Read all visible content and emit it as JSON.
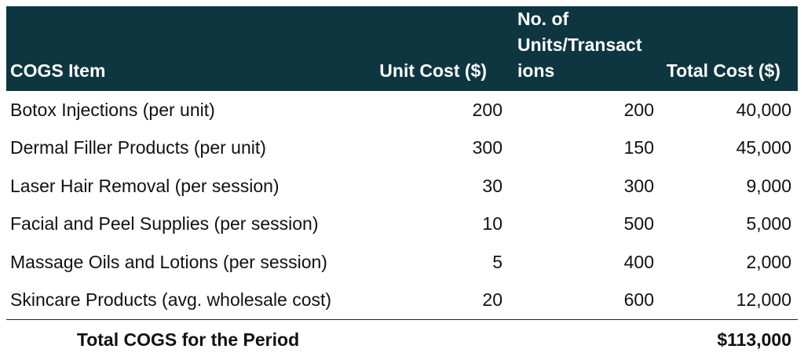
{
  "table": {
    "headers": {
      "item": "COGS Item",
      "unit_cost": "Unit Cost ($)",
      "units_line1": "No. of",
      "units_line2": "Units/Transact",
      "units_line3": "ions",
      "total_cost": "Total Cost ($)"
    },
    "rows": [
      {
        "item": "Botox Injections (per unit)",
        "unit_cost": "200",
        "units": "200",
        "total": "40,000"
      },
      {
        "item": "Dermal Filler Products (per unit)",
        "unit_cost": "300",
        "units": "150",
        "total": "45,000"
      },
      {
        "item": "Laser Hair Removal (per session)",
        "unit_cost": "30",
        "units": "300",
        "total": "9,000"
      },
      {
        "item": "Facial and Peel Supplies (per session)",
        "unit_cost": "10",
        "units": "500",
        "total": "5,000"
      },
      {
        "item": "Massage Oils and Lotions (per session)",
        "unit_cost": "5",
        "units": "400",
        "total": "2,000"
      },
      {
        "item": "Skincare Products (avg. wholesale cost)",
        "unit_cost": "20",
        "units": "600",
        "total": "12,000"
      }
    ],
    "footer": {
      "label": "Total COGS for the Period",
      "total": "$113,000"
    }
  },
  "colors": {
    "header_bg": "#0d3640",
    "header_text": "#ffffff"
  }
}
